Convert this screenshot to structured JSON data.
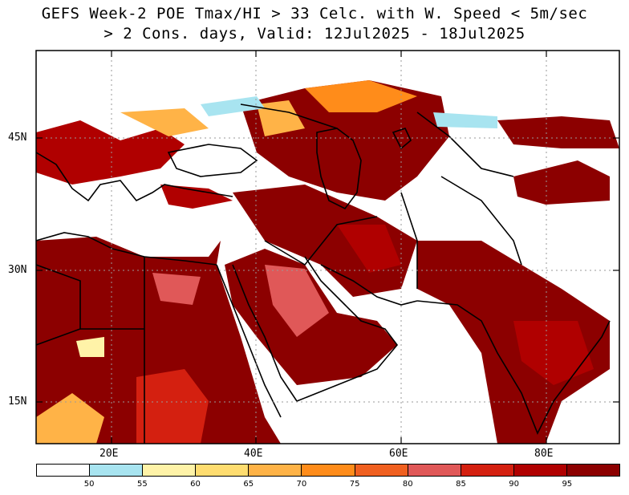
{
  "title": {
    "line1": "GEFS Week-2 POE Tmax/HI > 33 Celc. with W. Speed < 5m/sec",
    "line2": "> 2 Cons. days, Valid: 12Jul2025 - 18Jul2025"
  },
  "axes": {
    "y_labels": [
      "45N",
      "30N",
      "15N"
    ],
    "x_labels": [
      "20E",
      "40E",
      "60E",
      "80E"
    ]
  },
  "colorbar": {
    "colors": [
      "#ffffff",
      "#a8e4f0",
      "#fff3a8",
      "#ffdd70",
      "#ffb347",
      "#ff8c1a",
      "#f06020",
      "#e05858",
      "#d42010",
      "#b00000",
      "#8c0000"
    ],
    "tick_labels": [
      "50",
      "55",
      "60",
      "65",
      "70",
      "75",
      "80",
      "85",
      "90",
      "95"
    ]
  }
}
